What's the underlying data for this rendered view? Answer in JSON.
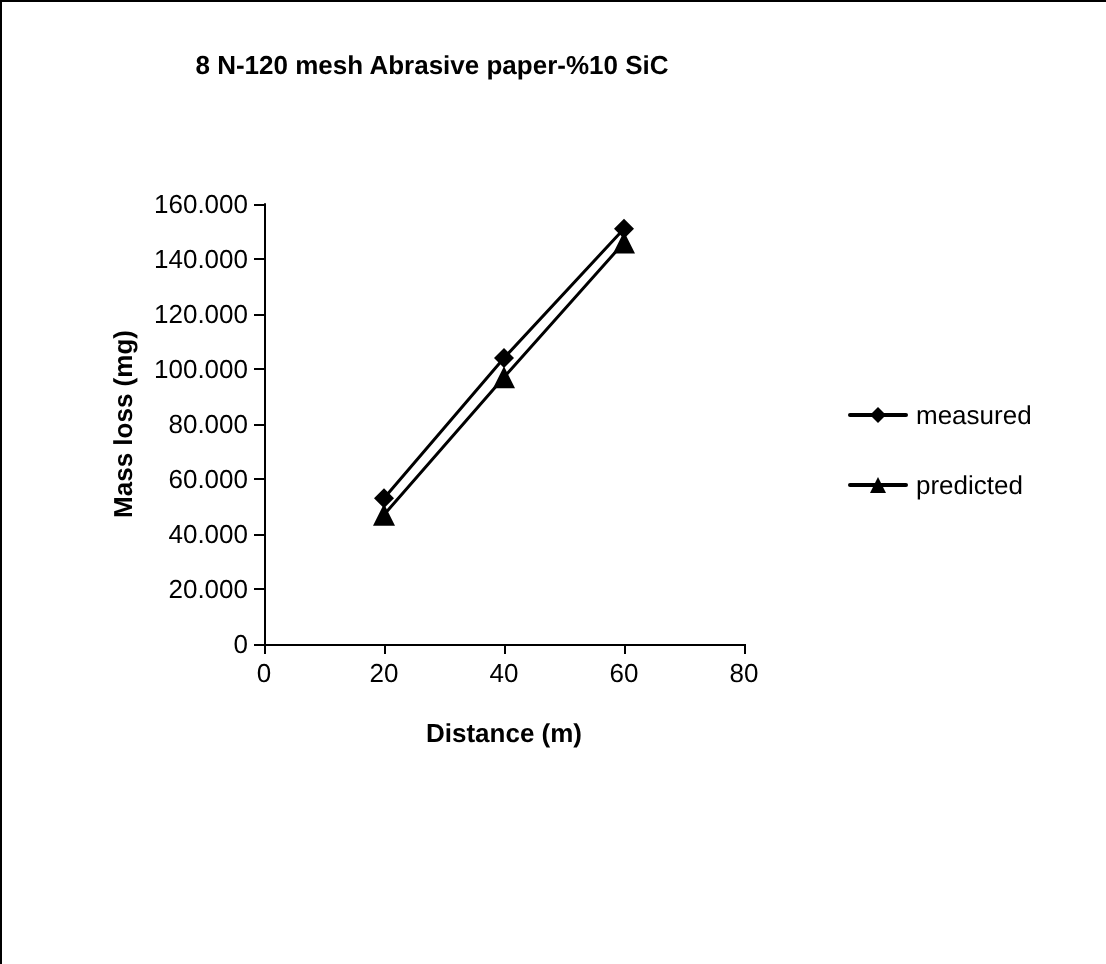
{
  "chart_data": {
    "type": "line",
    "title": "8 N-120 mesh Abrasive paper-%10 SiC",
    "xlabel": "Distance (m)",
    "ylabel": "Mass loss (mg)",
    "x": [
      20,
      40,
      60
    ],
    "series": [
      {
        "name": "measured",
        "color": "#000000",
        "marker": "diamond",
        "values": [
          53000,
          104000,
          151000
        ]
      },
      {
        "name": "predicted",
        "color": "#000000",
        "marker": "triangle",
        "values": [
          47000,
          97000,
          146000
        ]
      }
    ],
    "xlim": [
      0,
      80
    ],
    "xticks": [
      0,
      20,
      40,
      60,
      80
    ],
    "ylim": [
      0,
      160000
    ],
    "yticks": [
      0,
      {
        "value": 20000,
        "label": "20.000"
      },
      {
        "value": 40000,
        "label": "40.000"
      },
      {
        "value": 60000,
        "label": "60.000"
      },
      {
        "value": 80000,
        "label": "80.000"
      },
      {
        "value": 100000,
        "label": "100.000"
      },
      {
        "value": 120000,
        "label": "120.000"
      },
      {
        "value": 140000,
        "label": "140.000"
      },
      {
        "value": 160000,
        "label": "160.000"
      }
    ],
    "grid": false,
    "legend": "right",
    "line_style": "solid"
  }
}
